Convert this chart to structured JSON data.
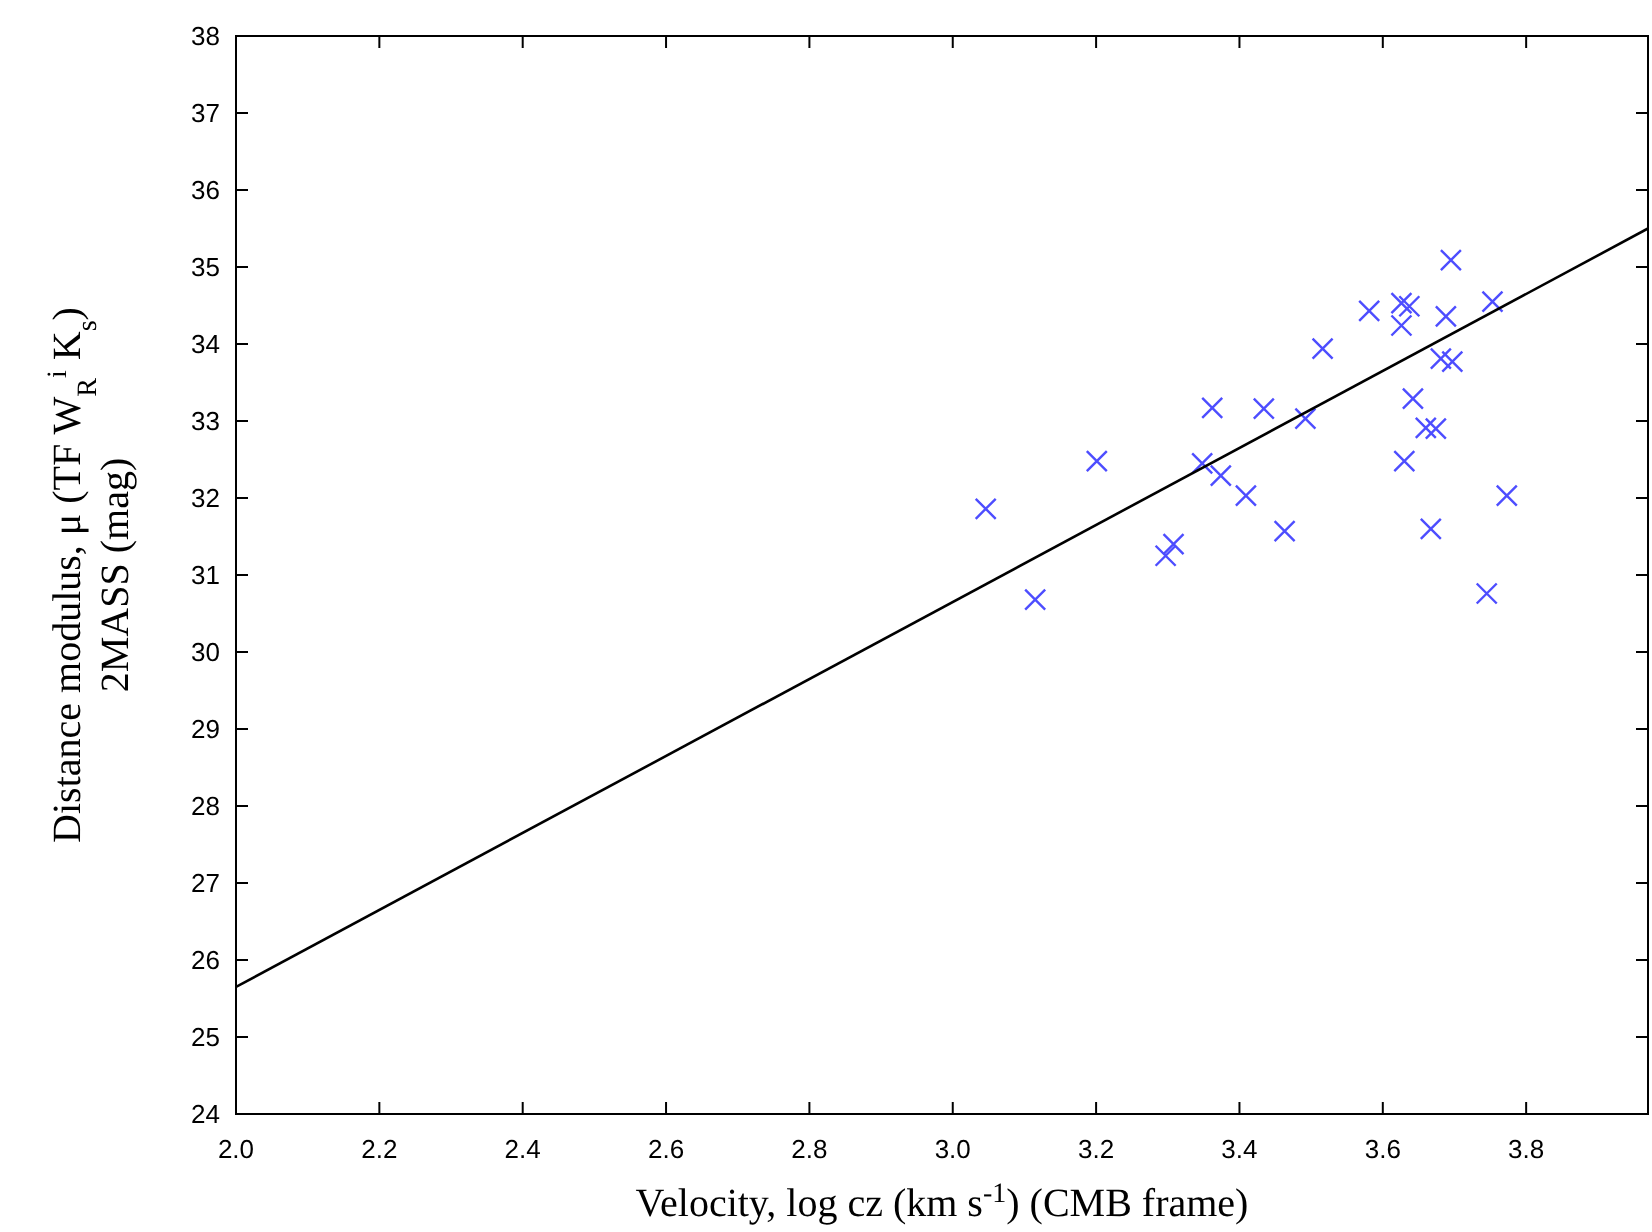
{
  "chart_data": {
    "type": "scatter",
    "xlabel": "Velocity, log cz (km s$^{-1}$) (CMB frame)",
    "ylabel": "Distance modulus, μ (TF W$_{R}$$^{i}$ K$_{s}$)\n2MASS (mag)",
    "xlim": [
      2.0,
      3.97
    ],
    "ylim": [
      24,
      38
    ],
    "xticks": [
      {
        "value": 2.0,
        "label": "2.0"
      },
      {
        "value": 2.2,
        "label": "2.2"
      },
      {
        "value": 2.4,
        "label": "2.4"
      },
      {
        "value": 2.6,
        "label": "2.6"
      },
      {
        "value": 2.8,
        "label": "2.8"
      },
      {
        "value": 3.0,
        "label": "3.0"
      },
      {
        "value": 3.2,
        "label": "3.2"
      },
      {
        "value": 3.4,
        "label": "3.4"
      },
      {
        "value": 3.6,
        "label": "3.6"
      },
      {
        "value": 3.8,
        "label": "3.8"
      }
    ],
    "yticks": [
      24,
      25,
      26,
      27,
      28,
      29,
      30,
      31,
      32,
      33,
      34,
      35,
      36,
      37,
      38
    ],
    "grid": false,
    "marker": "cross",
    "series": [
      {
        "color": "#4d4dff",
        "x": [
          3.695,
          3.753,
          3.581,
          3.626,
          3.637,
          3.626,
          3.688,
          3.516,
          3.681,
          3.697,
          3.642,
          3.362,
          3.434,
          3.492,
          3.66,
          3.674,
          3.201,
          3.348,
          3.374,
          3.63,
          3.409,
          3.046,
          3.773,
          3.463,
          3.667,
          3.308,
          3.297,
          3.115,
          3.745
        ],
        "values": [
          35.09,
          34.55,
          34.43,
          34.53,
          34.49,
          34.24,
          34.36,
          33.94,
          33.81,
          33.77,
          33.29,
          33.17,
          33.16,
          33.03,
          32.91,
          32.9,
          32.48,
          32.45,
          32.29,
          32.48,
          32.03,
          31.86,
          32.03,
          31.57,
          31.6,
          31.4,
          31.25,
          30.68,
          30.76
        ]
      },
      {
        "type": "line",
        "color": "#000000",
        "line_style": "solid",
        "marker": "none",
        "x": [
          2.0,
          3.97
        ],
        "values": [
          25.65,
          35.5
        ]
      }
    ]
  }
}
